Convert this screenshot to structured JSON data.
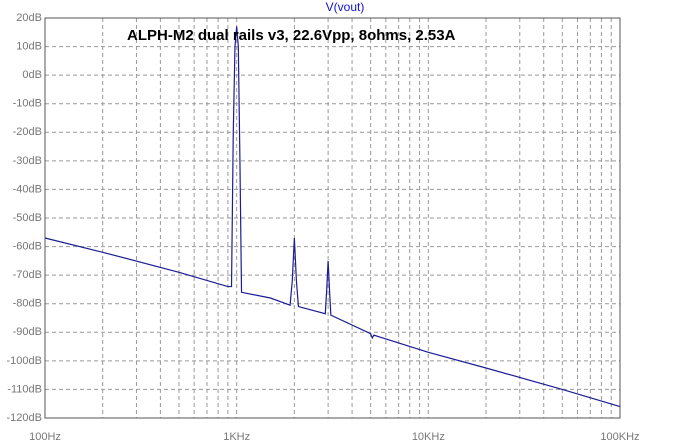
{
  "chart_data": {
    "type": "line",
    "title": "V(vout)",
    "annotation": "ALPH-M2 dual rails v3, 22.6Vpp, 8ohms, 2.53A",
    "xscale": "log",
    "grid": true,
    "x": [
      100,
      200,
      500,
      900,
      940,
      960,
      980,
      1000,
      1020,
      1040,
      1060,
      1500,
      1900,
      1950,
      2000,
      2050,
      2100,
      2900,
      2950,
      3000,
      3050,
      3100,
      5000,
      5100,
      5200,
      10000,
      20000,
      50000,
      100000
    ],
    "series": [
      {
        "name": "V(vout)",
        "color": "#1c1c94",
        "values": [
          -57,
          -62,
          -69,
          -74,
          -74,
          -20,
          10,
          17,
          10,
          -30,
          -76,
          -78,
          -80.5,
          -72,
          -57,
          -72,
          -81,
          -83.5,
          -75,
          -65,
          -75,
          -84,
          -90.5,
          -92,
          -91,
          -97,
          -102.5,
          -110,
          -116
        ]
      }
    ],
    "xlim": [
      100,
      100000
    ],
    "xticks": [
      {
        "value": 100,
        "label": "100Hz"
      },
      {
        "value": 1000,
        "label": "1KHz"
      },
      {
        "value": 10000,
        "label": "10KHz"
      },
      {
        "value": 100000,
        "label": "100KHz"
      }
    ],
    "xminorticks": [
      200,
      300,
      400,
      500,
      600,
      700,
      800,
      900,
      2000,
      3000,
      4000,
      5000,
      6000,
      7000,
      8000,
      9000,
      20000,
      30000,
      40000,
      50000,
      60000,
      70000,
      80000,
      90000
    ],
    "ylim": [
      -120,
      20
    ],
    "yticks": [
      {
        "value": -120,
        "label": "-120dB"
      },
      {
        "value": -110,
        "label": "-110dB"
      },
      {
        "value": -100,
        "label": "-100dB"
      },
      {
        "value": -90,
        "label": "-90dB"
      },
      {
        "value": -80,
        "label": "-80dB"
      },
      {
        "value": -70,
        "label": "-70dB"
      },
      {
        "value": -60,
        "label": "-60dB"
      },
      {
        "value": -50,
        "label": "-50dB"
      },
      {
        "value": -40,
        "label": "-40dB"
      },
      {
        "value": -30,
        "label": "-30dB"
      },
      {
        "value": -20,
        "label": "-20dB"
      },
      {
        "value": -10,
        "label": "-10dB"
      },
      {
        "value": 0,
        "label": "0dB"
      },
      {
        "value": 10,
        "label": "10dB"
      },
      {
        "value": 20,
        "label": "20dB"
      }
    ]
  }
}
